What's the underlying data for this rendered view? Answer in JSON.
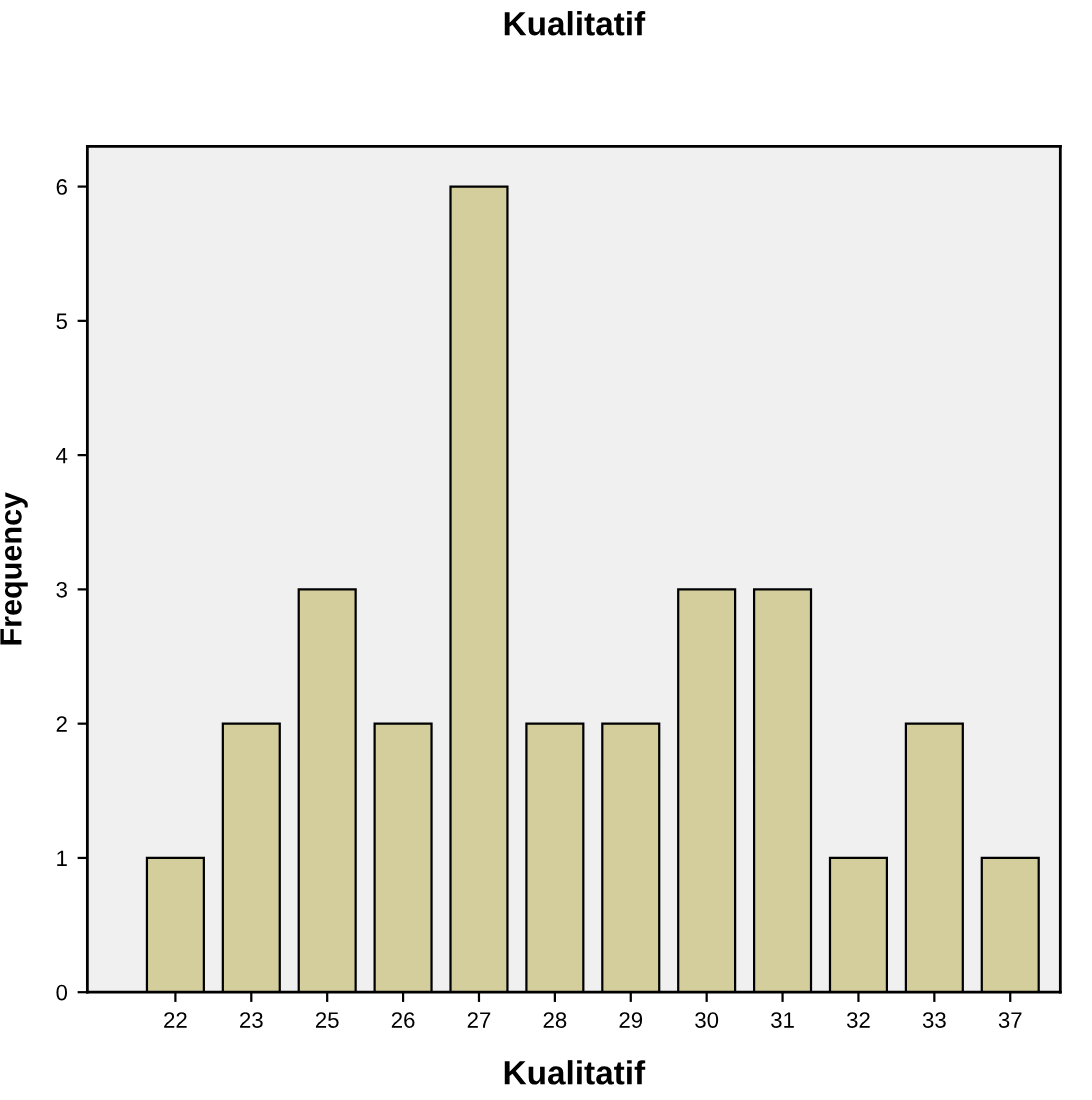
{
  "chart_data": {
    "type": "bar",
    "title": "Kualitatif",
    "xlabel": "Kualitatif",
    "ylabel": "Frequency",
    "categories": [
      "22",
      "23",
      "25",
      "26",
      "27",
      "28",
      "29",
      "30",
      "31",
      "32",
      "33",
      "37"
    ],
    "values": [
      1,
      2,
      3,
      2,
      6,
      2,
      2,
      3,
      3,
      1,
      2,
      1
    ],
    "color": "#d3ce9c",
    "ylim": [
      0,
      6.3
    ],
    "yticks": [
      0,
      1,
      2,
      3,
      4,
      5,
      6
    ],
    "grid": false,
    "legend": false
  }
}
